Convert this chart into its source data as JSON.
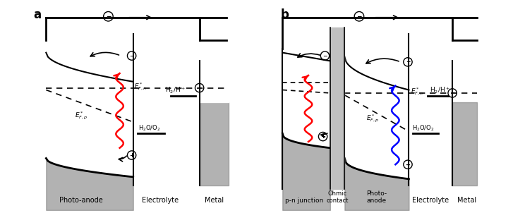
{
  "fig_width": 7.27,
  "fig_height": 3.02,
  "bg_color": "#ffffff",
  "panel_a": {
    "label": "a",
    "photo_anode_label": "Photo-anode",
    "electrolyte_label": "Electrolyte",
    "metal_label": "Metal"
  },
  "panel_b": {
    "label": "b",
    "pn_label": "p-n junction",
    "ohmic_label": "Ohmic\ncontact",
    "photo_anode_label": "Photo-\nanode",
    "electrolyte_label": "Electrolyte",
    "metal_label": "Metal"
  }
}
